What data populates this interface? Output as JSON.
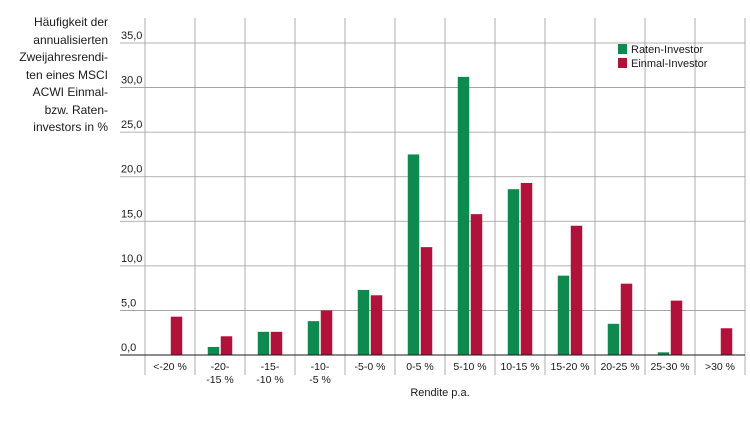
{
  "chart_data": {
    "type": "bar",
    "ylabel_lines": [
      "Häufigkeit der",
      "annualisierten",
      "Zweijahresrendi-",
      "ten eines MSCI",
      "ACWI Einmal-",
      "bzw. Raten-",
      "investors in %"
    ],
    "xlabel": "Rendite p.a.",
    "ylim": [
      0,
      35
    ],
    "yticks": [
      "0,0",
      "5,0",
      "10,0",
      "15,0",
      "20,0",
      "25,0",
      "30,0",
      "35,0"
    ],
    "categories": [
      [
        "<-20 %"
      ],
      [
        "-20-",
        "-15 %"
      ],
      [
        "-15-",
        "-10 %"
      ],
      [
        "-10-",
        "-5 %"
      ],
      [
        "-5-0 %"
      ],
      [
        "0-5 %"
      ],
      [
        "5-10 %"
      ],
      [
        "10-15 %"
      ],
      [
        "15-20 %"
      ],
      [
        "20-25 %"
      ],
      [
        "25-30 %"
      ],
      [
        ">30 %"
      ]
    ],
    "series": [
      {
        "name": "Raten-Investor",
        "color": "#0f8a4f",
        "values": [
          0,
          0.9,
          2.6,
          3.8,
          7.3,
          22.5,
          31.2,
          18.6,
          8.9,
          3.5,
          0.3,
          0
        ]
      },
      {
        "name": "Einmal-Investor",
        "color": "#b0123b",
        "values": [
          4.3,
          2.1,
          2.6,
          5.0,
          6.7,
          12.1,
          15.8,
          19.3,
          14.5,
          8.0,
          6.1,
          3.0
        ]
      }
    ],
    "grid": true,
    "legend_position": "top-right"
  }
}
